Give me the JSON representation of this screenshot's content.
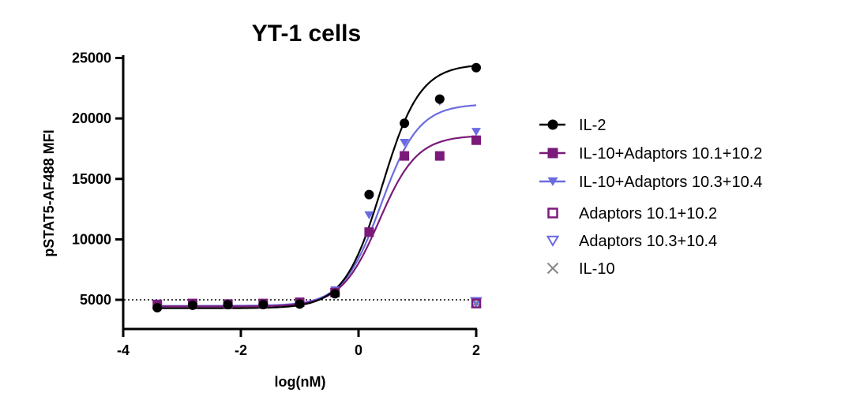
{
  "chart_data": {
    "type": "scatter",
    "title": "YT-1 cells",
    "xlabel": "log(nM)",
    "ylabel": "pSTAT5-AF488 MFI",
    "xlim": [
      -4,
      2
    ],
    "ylim": [
      2500,
      25000
    ],
    "xticks": [
      -4,
      -2,
      0,
      2
    ],
    "xtick_labels": [
      "-4",
      "-2",
      "0",
      "2"
    ],
    "yticks": [
      5000,
      10000,
      15000,
      20000,
      25000
    ],
    "ytick_labels": [
      "5000",
      "10000",
      "15000",
      "20000",
      "25000"
    ],
    "reference_line": {
      "y": 5000,
      "style": "dotted"
    },
    "series": [
      {
        "name": "IL-2",
        "marker": "filled-circle",
        "color": "#000000",
        "x": [
          -3.42,
          -2.82,
          -2.22,
          -1.62,
          -1.0,
          -0.4,
          0.18,
          0.78,
          1.38,
          2.0
        ],
        "y": [
          4350,
          4550,
          4600,
          4600,
          4650,
          5500,
          13700,
          19600,
          21600,
          24200
        ],
        "fit": {
          "bottom": 4300,
          "top": 24500,
          "ec50": 0.4,
          "hill": 1.35
        }
      },
      {
        "name": "IL-10+Adaptors 10.1+10.2",
        "marker": "filled-square",
        "color": "#7b1a7b",
        "x": [
          -3.42,
          -2.82,
          -2.22,
          -1.62,
          -1.0,
          -0.4,
          0.18,
          0.78,
          1.38,
          2.0
        ],
        "y": [
          4600,
          4700,
          4650,
          4700,
          4800,
          5600,
          10600,
          16900,
          16900,
          18200
        ],
        "fit": {
          "bottom": 4450,
          "top": 18600,
          "ec50": 0.35,
          "hill": 1.35
        }
      },
      {
        "name": "IL-10+Adaptors 10.3+10.4",
        "marker": "filled-triangle-down",
        "color": "#6b6be0",
        "x": [
          -3.42,
          -2.82,
          -2.22,
          -1.62,
          -1.0,
          -0.4,
          0.18,
          0.78,
          1.38,
          2.0
        ],
        "y": [
          4700,
          4750,
          4700,
          4750,
          4850,
          5800,
          12000,
          18000,
          21400,
          18900
        ],
        "fit": {
          "bottom": 4500,
          "top": 21200,
          "ec50": 0.38,
          "hill": 1.35
        }
      },
      {
        "name": "Adaptors 10.1+10.2",
        "marker": "open-square",
        "color": "#7b1a7b",
        "x": [
          2.0
        ],
        "y": [
          4700
        ],
        "fit": null
      },
      {
        "name": "Adaptors 10.3+10.4",
        "marker": "open-triangle-down",
        "color": "#6b6be0",
        "x": [
          2.0
        ],
        "y": [
          4850
        ],
        "fit": null
      },
      {
        "name": "IL-10",
        "marker": "x",
        "color": "#8a8a8a",
        "x": [
          2.0
        ],
        "y": [
          4750
        ],
        "fit": null
      }
    ],
    "legend_position": "right"
  }
}
